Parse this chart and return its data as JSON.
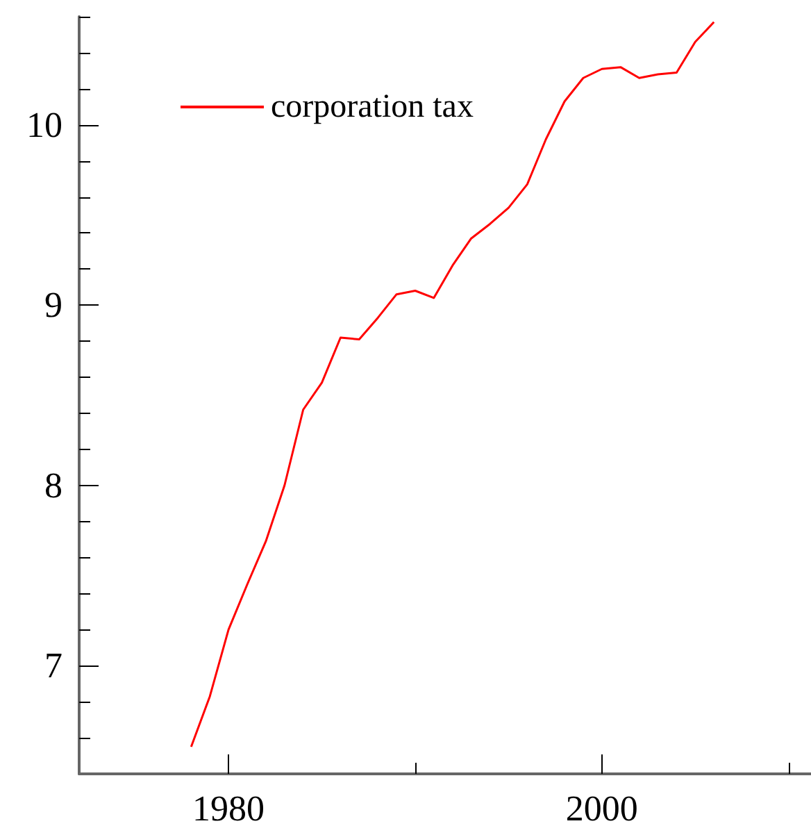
{
  "chart_data": {
    "type": "line",
    "x": [
      1978,
      1979,
      1980,
      1981,
      1982,
      1983,
      1984,
      1985,
      1986,
      1987,
      1988,
      1989,
      1990,
      1991,
      1992,
      1993,
      1994,
      1995,
      1996,
      1997,
      1998,
      1999,
      2000,
      2001,
      2002,
      2003,
      2004,
      2005,
      2006
    ],
    "series": [
      {
        "name": "corporation tax",
        "color": "#ff0000",
        "values": [
          6.55,
          6.83,
          7.2,
          7.45,
          7.69,
          8.0,
          8.42,
          8.57,
          8.82,
          8.81,
          8.93,
          9.06,
          9.08,
          9.04,
          9.22,
          9.37,
          9.45,
          9.54,
          9.67,
          9.92,
          10.13,
          10.26,
          10.31,
          10.32,
          10.26,
          10.28,
          10.29,
          10.46,
          10.57
        ]
      }
    ],
    "xlim": [
      1972,
      2011.2
    ],
    "xticks": [
      1980,
      {
        "value": 1990,
        "label": null
      },
      2000,
      {
        "value": 2010,
        "label": null
      }
    ],
    "ylim": [
      6.4,
      10.6
    ],
    "yticks": [
      {
        "value": 6.6,
        "label": null
      },
      {
        "value": 6.8,
        "label": null
      },
      7,
      {
        "value": 7.2,
        "label": null
      },
      {
        "value": 7.4,
        "label": null
      },
      {
        "value": 7.6,
        "label": null
      },
      {
        "value": 7.8,
        "label": null
      },
      8,
      {
        "value": 8.2,
        "label": null
      },
      {
        "value": 8.4,
        "label": null
      },
      {
        "value": 8.6,
        "label": null
      },
      {
        "value": 8.8,
        "label": null
      },
      9,
      {
        "value": 9.2,
        "label": null
      },
      {
        "value": 9.4,
        "label": null
      },
      {
        "value": 9.6,
        "label": null
      },
      {
        "value": 9.8,
        "label": null
      },
      10,
      {
        "value": 10.2,
        "label": null
      },
      {
        "value": 10.4,
        "label": null
      },
      {
        "value": 10.6,
        "label": null
      }
    ],
    "grid": false,
    "legend": "top left",
    "marker": "none",
    "line_style": "solid"
  }
}
